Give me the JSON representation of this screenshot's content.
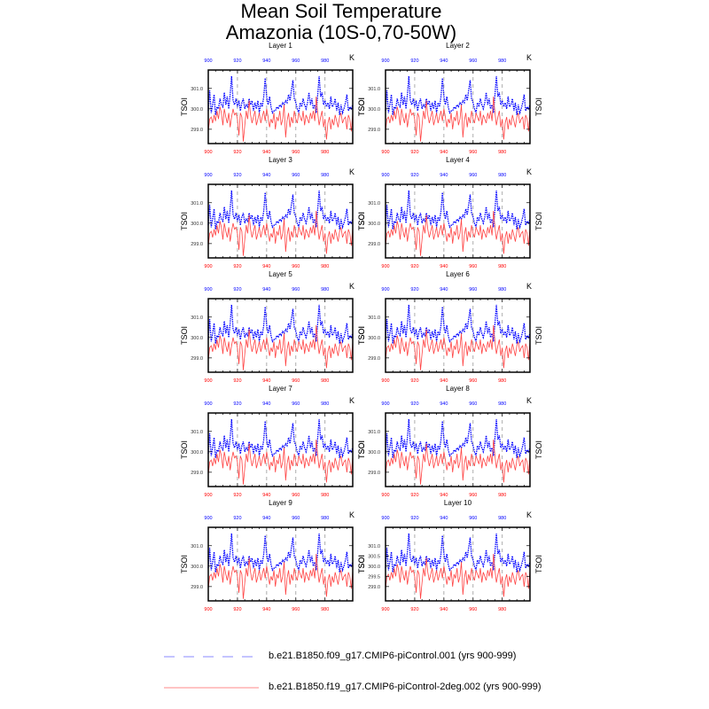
{
  "chart_data": {
    "type": "line",
    "title": [
      "Mean Soil Temperature",
      "Amazonia (10S-0,70-50W)"
    ],
    "panels": [
      "Layer 1",
      "Layer 2",
      "Layer 3",
      "Layer 4",
      "Layer 5",
      "Layer 6",
      "Layer 7",
      "Layer 8",
      "Layer 9",
      "Layer 10"
    ],
    "ylabel": "TSOI",
    "units": "K",
    "xlim": [
      900,
      999
    ],
    "ylim": [
      298.3,
      301.9
    ],
    "xticks": [
      900,
      920,
      940,
      960,
      980
    ],
    "yticks": [
      "299.0",
      "300.0",
      "301.0"
    ],
    "yticks_layer10": [
      "299.0",
      "299.5",
      "300.0",
      "300.5",
      "301.0"
    ],
    "grid": "dashed vertical at 920, 940, 960, 980",
    "x_start": 900,
    "series": [
      {
        "name": "b.e21.B1850.f09_g17.CMIP6-piControl.001 (yrs 900-999)",
        "color": "#0000ff",
        "style": "dashed",
        "values": [
          299.9,
          300.9,
          299.8,
          300.2,
          300.7,
          299.7,
          300.1,
          300.0,
          300.5,
          300.2,
          300.1,
          300.8,
          300.2,
          300.6,
          300.0,
          300.7,
          301.6,
          300.4,
          300.2,
          300.5,
          300.1,
          300.4,
          299.9,
          300.3,
          300.5,
          300.0,
          300.2,
          300.1,
          300.5,
          300.2,
          300.4,
          299.9,
          300.3,
          300.0,
          300.4,
          299.8,
          300.3,
          300.1,
          300.6,
          301.5,
          300.6,
          300.2,
          300.6,
          300.1,
          299.8,
          299.9,
          299.9,
          300.1,
          300.0,
          300.2,
          300.1,
          300.3,
          300.2,
          300.4,
          300.3,
          300.7,
          300.4,
          300.9,
          301.4,
          300.5,
          300.3,
          300.0,
          299.8,
          300.3,
          300.1,
          300.5,
          300.2,
          300.0,
          300.3,
          300.8,
          300.2,
          300.5,
          300.0,
          300.2,
          299.8,
          300.7,
          301.6,
          300.6,
          300.8,
          300.2,
          300.4,
          300.1,
          300.3,
          300.0,
          300.6,
          300.1,
          300.2,
          300.5,
          299.9,
          300.3,
          299.7,
          300.2,
          299.8,
          300.0,
          300.3,
          300.7,
          299.9,
          300.1,
          300.0,
          300.2
        ]
      },
      {
        "name": "b.e21.B1850.f19_g17.CMIP6-piControl-2deg.002 (yrs 900-999)",
        "color": "#ff0000",
        "style": "solid",
        "values": [
          298.9,
          299.5,
          299.6,
          299.3,
          299.7,
          299.4,
          299.9,
          299.5,
          300.1,
          299.8,
          299.2,
          300.0,
          299.6,
          299.3,
          299.8,
          299.1,
          299.6,
          300.0,
          299.7,
          299.8,
          299.5,
          298.7,
          299.8,
          299.6,
          298.4,
          299.2,
          299.9,
          299.5,
          300.4,
          299.7,
          299.3,
          299.6,
          299.9,
          299.2,
          299.5,
          299.8,
          299.3,
          299.6,
          299.9,
          299.4,
          300.0,
          299.6,
          299.1,
          299.5,
          299.3,
          299.8,
          299.0,
          299.6,
          299.4,
          299.9,
          299.2,
          299.5,
          300.2,
          298.6,
          299.4,
          299.8,
          299.1,
          299.6,
          299.3,
          299.9,
          299.5,
          299.3,
          299.8,
          299.6,
          299.4,
          299.9,
          299.2,
          299.7,
          299.5,
          299.3,
          299.8,
          299.5,
          299.9,
          299.4,
          300.6,
          299.8,
          299.2,
          299.6,
          299.9,
          299.1,
          299.5,
          298.5,
          299.3,
          299.6,
          299.0,
          299.5,
          299.2,
          299.7,
          299.4,
          299.1,
          299.6,
          299.8,
          299.3,
          299.5,
          299.6,
          299.0,
          299.7,
          299.5,
          298.9,
          299.8
        ]
      }
    ]
  }
}
